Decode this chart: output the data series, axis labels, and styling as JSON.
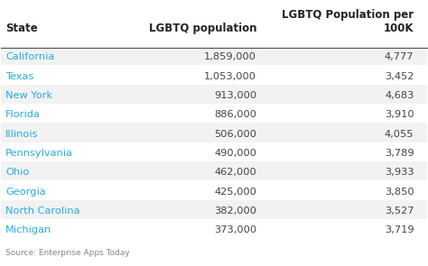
{
  "headers": [
    "State",
    "LGBTQ population",
    "LGBTQ Population per\n100K"
  ],
  "states": [
    "California",
    "Texas",
    "New York",
    "Florida",
    "Illinois",
    "Pennsylvania",
    "Ohio",
    "Georgia",
    "North Carolina",
    "Michigan"
  ],
  "lgbtq_pop": [
    "1,859,000",
    "1,053,000",
    "913,000",
    "886,000",
    "506,000",
    "490,000",
    "462,000",
    "425,000",
    "382,000",
    "373,000"
  ],
  "per_100k": [
    "4,777",
    "3,452",
    "4,683",
    "3,910",
    "4,055",
    "3,789",
    "3,933",
    "3,850",
    "3,527",
    "3,719"
  ],
  "state_color": "#29ABE2",
  "header_color": "#222222",
  "value_color": "#444444",
  "bg_color": "#ffffff",
  "row_alt_color": "#f2f2f2",
  "row_main_color": "#ffffff",
  "header_line_color": "#555555",
  "source_text": "Source: Enterprise Apps Today",
  "source_color": "#888888",
  "header_fontsize": 8.5,
  "row_fontsize": 8.2,
  "source_fontsize": 6.5
}
